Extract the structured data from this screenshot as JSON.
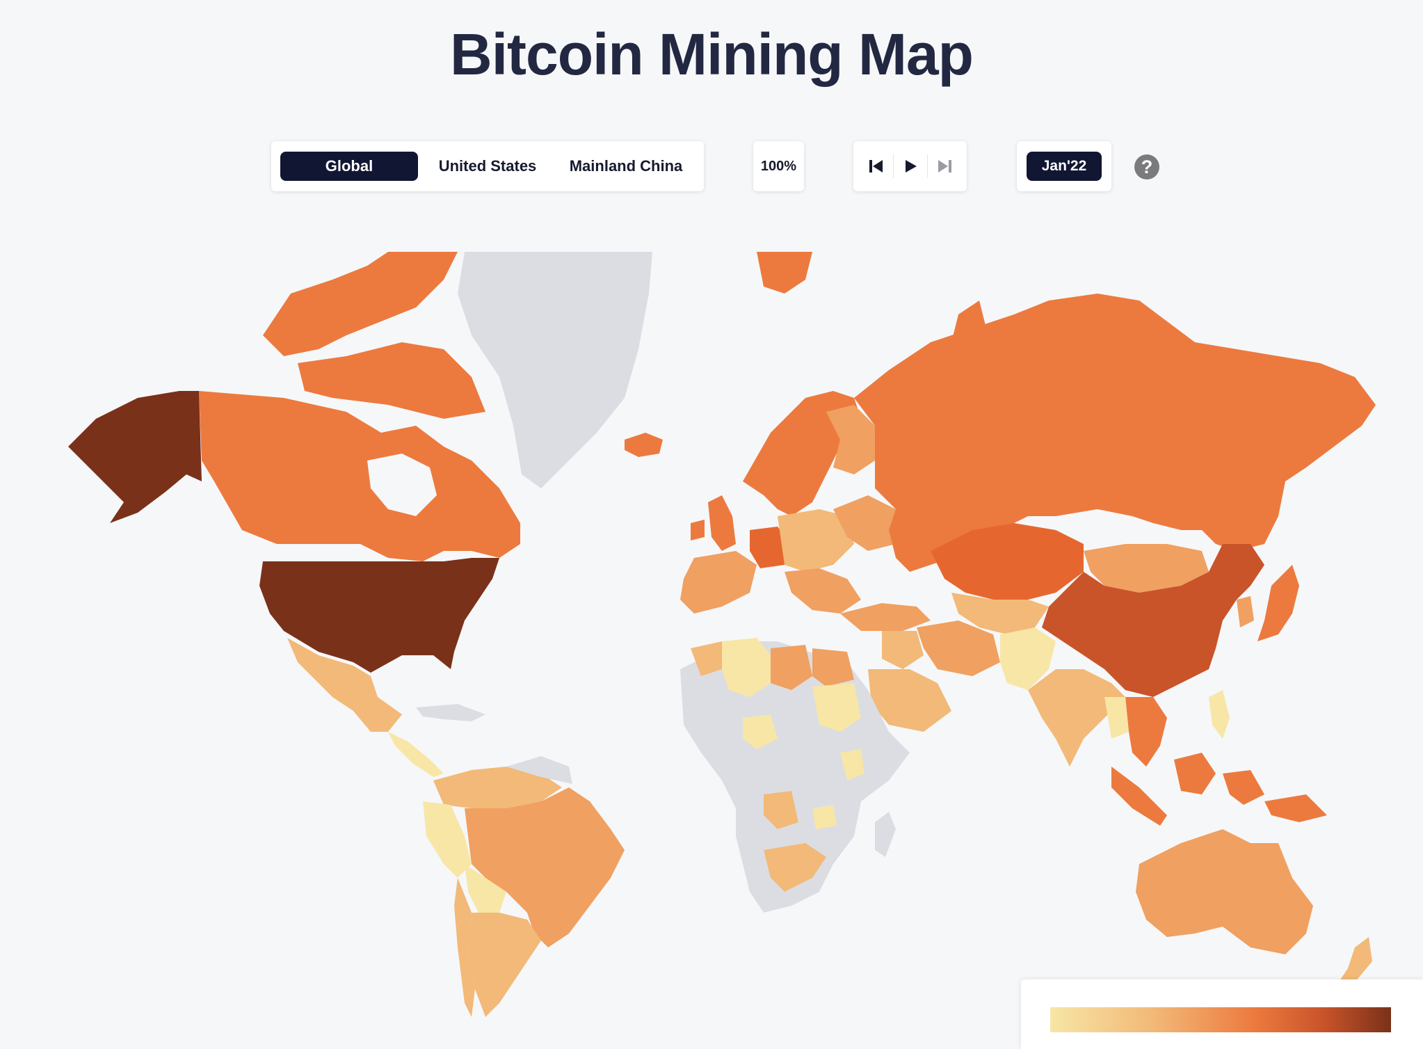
{
  "title": "Bitcoin Mining Map",
  "region_tabs": [
    {
      "label": "Global",
      "active": true
    },
    {
      "label": "United States",
      "active": false
    },
    {
      "label": "Mainland China",
      "active": false
    }
  ],
  "zoom": {
    "label": "100%"
  },
  "playback": {
    "first_icon": "skip-to-start-icon",
    "play_icon": "play-icon",
    "last_icon": "skip-to-end-icon",
    "last_disabled": true
  },
  "date": {
    "label": "Jan'22"
  },
  "help": {
    "label": "?",
    "icon": "question-mark-icon"
  },
  "colors": {
    "no_data": "#dcdde2",
    "scale": [
      "#f7e6a6",
      "#f2b978",
      "#ec7a3e",
      "#c9542a",
      "#7a3119"
    ],
    "accent": "#111633"
  },
  "map": {
    "regions": [
      {
        "name": "United States",
        "level": 4
      },
      {
        "name": "Alaska",
        "level": 4
      },
      {
        "name": "Canada",
        "level": 2
      },
      {
        "name": "Greenland",
        "level": -1
      },
      {
        "name": "Mexico",
        "level": 1
      },
      {
        "name": "Russia",
        "level": 2
      },
      {
        "name": "Kazakhstan",
        "level": 2.5
      },
      {
        "name": "China",
        "level": 3
      },
      {
        "name": "Mongolia",
        "level": 1
      },
      {
        "name": "Iran",
        "level": 1
      },
      {
        "name": "India",
        "level": 1
      },
      {
        "name": "Australia",
        "level": 1.5
      },
      {
        "name": "Brazil",
        "level": 1.5
      },
      {
        "name": "Argentina",
        "level": 1
      },
      {
        "name": "Peru",
        "level": 0
      },
      {
        "name": "Algeria",
        "level": 0
      },
      {
        "name": "Libya",
        "level": 1.5
      },
      {
        "name": "Egypt",
        "level": 1.5
      },
      {
        "name": "Angola",
        "level": 1
      },
      {
        "name": "South Africa",
        "level": 1
      },
      {
        "name": "Japan",
        "level": 2
      },
      {
        "name": "Indonesia",
        "level": 2
      },
      {
        "name": "Germany",
        "level": 2.5
      },
      {
        "name": "Nordics",
        "level": 1.5
      },
      {
        "name": "Saudi Arabia",
        "level": 1
      },
      {
        "name": "Central Africa",
        "level": -1
      }
    ]
  }
}
